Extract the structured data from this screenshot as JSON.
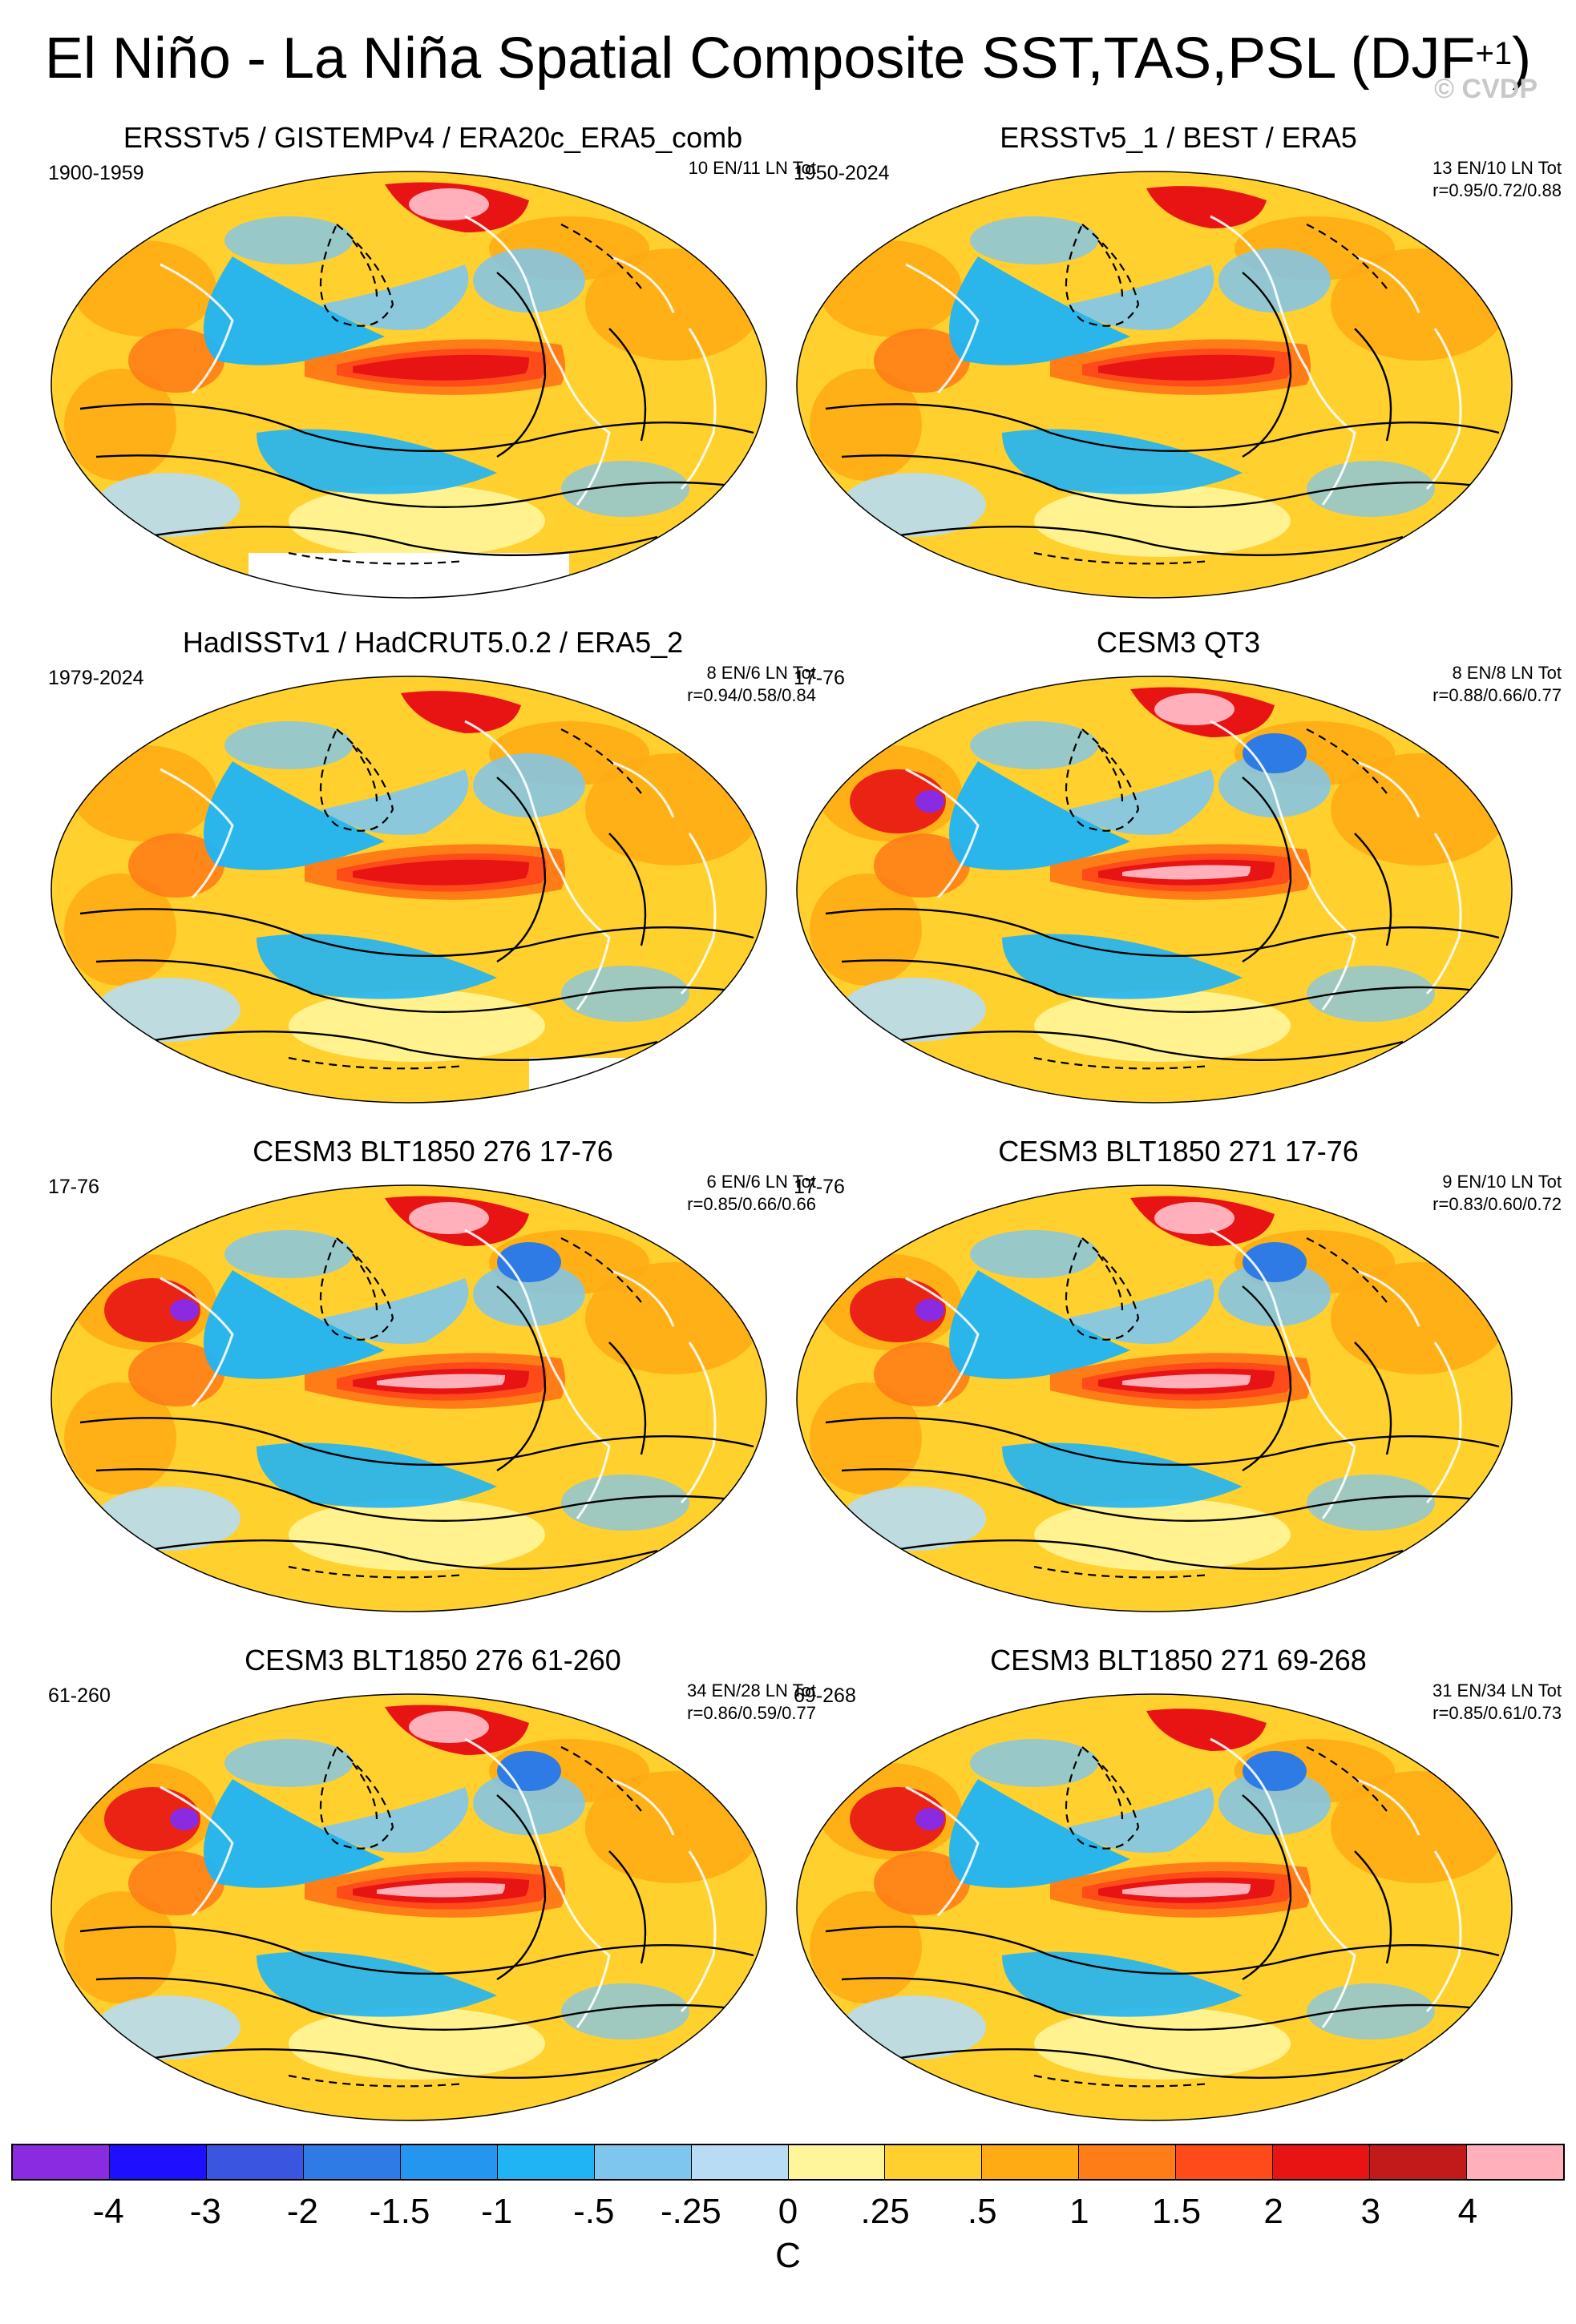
{
  "figure": {
    "title_main": "El Niño - La Niña Spatial Composite SST,TAS,PSL (DJF",
    "title_sup": "+1",
    "title_close": ")",
    "copyright": "© CVDP"
  },
  "panels": [
    {
      "title": "ERSSTv5 / GISTEMPv4 / ERA20c_ERA5_comb",
      "period": "1900-1959",
      "stats_line1": "10 EN/11 LN Tot",
      "stats_line2": "",
      "variant": 0
    },
    {
      "title": "ERSSTv5_1 / BEST / ERA5",
      "period": "1950-2024",
      "stats_line1": "13 EN/10 LN Tot",
      "stats_line2": "r=0.95/0.72/0.88",
      "variant": 1
    },
    {
      "title": "HadISSTv1 / HadCRUT5.0.2 / ERA5_2",
      "period": "1979-2024",
      "stats_line1": "8 EN/6 LN Tot",
      "stats_line2": "r=0.94/0.58/0.84",
      "variant": 2
    },
    {
      "title": "CESM3 QT3",
      "period": "17-76",
      "stats_line1": "8 EN/8 LN Tot",
      "stats_line2": "r=0.88/0.66/0.77",
      "variant": 3
    },
    {
      "title": "CESM3 BLT1850 276 17-76",
      "period": "17-76",
      "stats_line1": "6 EN/6 LN Tot",
      "stats_line2": "r=0.85/0.66/0.66",
      "variant": 4
    },
    {
      "title": "CESM3 BLT1850 271 17-76",
      "period": "17-76",
      "stats_line1": "9 EN/10 LN Tot",
      "stats_line2": "r=0.83/0.60/0.72",
      "variant": 5
    },
    {
      "title": "CESM3 BLT1850 276 61-260",
      "period": "61-260",
      "stats_line1": "34 EN/28 LN Tot",
      "stats_line2": "r=0.86/0.59/0.77",
      "variant": 6
    },
    {
      "title": "CESM3 BLT1850 271 69-268",
      "period": "69-268",
      "stats_line1": "31 EN/34 LN Tot",
      "stats_line2": "r=0.85/0.61/0.73",
      "variant": 7
    }
  ],
  "colorbar": {
    "unit": "C",
    "colors": [
      "#8a2be2",
      "#1e10ff",
      "#3a55e0",
      "#2e7be6",
      "#2596f0",
      "#20b4f5",
      "#7fc6ef",
      "#b7dcf3",
      "#fff59a",
      "#ffd02e",
      "#ffac14",
      "#ff7d16",
      "#ff4a1a",
      "#e81414",
      "#c21a1a",
      "#ffb0bb"
    ],
    "ticks": [
      "-4",
      "-3",
      "-2",
      "-1.5",
      "-1",
      "-.5",
      "-.25",
      "0",
      ".25",
      ".5",
      "1",
      "1.5",
      "2",
      "3",
      "4"
    ]
  }
}
